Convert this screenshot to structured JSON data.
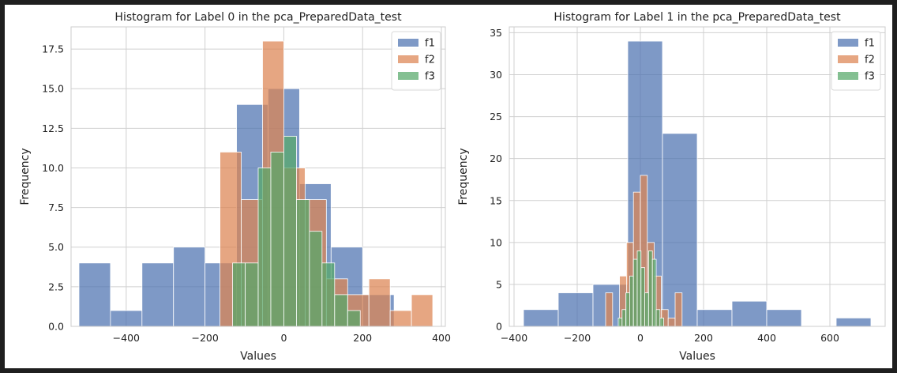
{
  "chart_data": [
    {
      "type": "histogram",
      "title": "Histogram for Label 0 in the pca_PreparedData_test",
      "xlabel": "Values",
      "ylabel": "Frequency",
      "xlim": [
        -540,
        410
      ],
      "ylim": [
        0,
        18.9
      ],
      "xticks": [
        -400,
        -200,
        0,
        200,
        400
      ],
      "yticks": [
        0.0,
        2.5,
        5.0,
        7.5,
        10.0,
        12.5,
        15.0,
        17.5
      ],
      "ytick_labels": [
        "0.0",
        "2.5",
        "5.0",
        "7.5",
        "10.0",
        "12.5",
        "15.0",
        "17.5"
      ],
      "grid": true,
      "legend_position": "top-right",
      "series": [
        {
          "name": "f1",
          "color": "#4c72b0",
          "bins": [
            [
              -520,
              -440,
              4
            ],
            [
              -440,
              -360,
              1
            ],
            [
              -360,
              -280,
              4
            ],
            [
              -280,
              -200,
              5
            ],
            [
              -200,
              -120,
              4
            ],
            [
              -120,
              -40,
              14
            ],
            [
              -40,
              40,
              15
            ],
            [
              40,
              120,
              9
            ],
            [
              120,
              200,
              5
            ],
            [
              200,
              280,
              2
            ]
          ]
        },
        {
          "name": "f2",
          "color": "#dd8452",
          "bins": [
            [
              -162,
              -108,
              11
            ],
            [
              -108,
              -54,
              8
            ],
            [
              -54,
              0,
              18
            ],
            [
              0,
              54,
              10
            ],
            [
              54,
              108,
              8
            ],
            [
              108,
              162,
              3
            ],
            [
              162,
              216,
              2
            ],
            [
              216,
              270,
              3
            ],
            [
              270,
              324,
              1
            ],
            [
              324,
              378,
              2
            ]
          ]
        },
        {
          "name": "f3",
          "color": "#55a868",
          "bins": [
            [
              -130,
              -98,
              4
            ],
            [
              -98,
              -65,
              4
            ],
            [
              -65,
              -33,
              10
            ],
            [
              -33,
              0,
              11
            ],
            [
              0,
              32,
              12
            ],
            [
              32,
              65,
              8
            ],
            [
              65,
              97,
              6
            ],
            [
              97,
              129,
              4
            ],
            [
              129,
              162,
              2
            ],
            [
              162,
              194,
              1
            ]
          ]
        }
      ]
    },
    {
      "type": "histogram",
      "title": "Histogram for Label 1 in the pca_PreparedData_test",
      "xlabel": "Values",
      "ylabel": "Frequency",
      "xlim": [
        -415,
        775
      ],
      "ylim": [
        0,
        35.7
      ],
      "xticks": [
        -400,
        -200,
        0,
        200,
        400,
        600
      ],
      "yticks": [
        0,
        5,
        10,
        15,
        20,
        25,
        30,
        35
      ],
      "ytick_labels": [
        "0",
        "5",
        "10",
        "15",
        "20",
        "25",
        "30",
        "35"
      ],
      "grid": true,
      "legend_position": "top-right",
      "series": [
        {
          "name": "f1",
          "color": "#4c72b0",
          "bins": [
            [
              -370,
              -260,
              2
            ],
            [
              -260,
              -150,
              4
            ],
            [
              -150,
              -40,
              5
            ],
            [
              -40,
              70,
              34
            ],
            [
              70,
              180,
              23
            ],
            [
              180,
              290,
              2
            ],
            [
              290,
              400,
              3
            ],
            [
              400,
              510,
              2
            ],
            [
              510,
              620,
              0
            ],
            [
              620,
              730,
              1
            ]
          ]
        },
        {
          "name": "f2",
          "color": "#dd8452",
          "bins": [
            [
              -110,
              -88,
              4
            ],
            [
              -88,
              -66,
              0
            ],
            [
              -66,
              -44,
              6
            ],
            [
              -44,
              -22,
              10
            ],
            [
              -22,
              0,
              16
            ],
            [
              0,
              22,
              18
            ],
            [
              22,
              44,
              10
            ],
            [
              44,
              66,
              6
            ],
            [
              66,
              88,
              2
            ],
            [
              88,
              110,
              1
            ],
            [
              110,
              132,
              4
            ]
          ]
        },
        {
          "name": "f3",
          "color": "#55a868",
          "bins": [
            [
              -70,
              -58,
              1
            ],
            [
              -58,
              -46,
              2
            ],
            [
              -46,
              -34,
              4
            ],
            [
              -34,
              -22,
              6
            ],
            [
              -22,
              -10,
              8
            ],
            [
              -10,
              2,
              9
            ],
            [
              2,
              14,
              7
            ],
            [
              14,
              26,
              4
            ],
            [
              26,
              38,
              9
            ],
            [
              38,
              50,
              8
            ],
            [
              50,
              62,
              2
            ],
            [
              62,
              74,
              1
            ]
          ]
        }
      ]
    }
  ]
}
